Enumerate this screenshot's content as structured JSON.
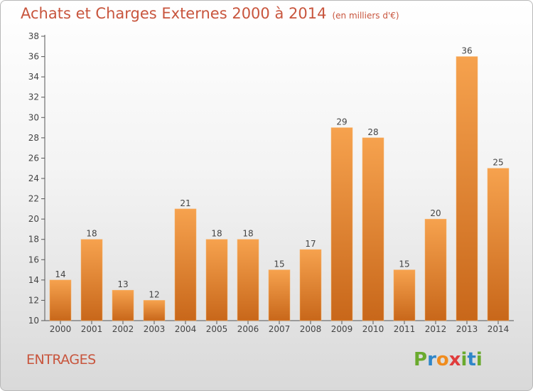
{
  "title": "Achats et Charges Externes 2000 à 2014",
  "unit_note": "(en milliers d'€)",
  "location": "ENTRAGES",
  "logo": [
    "P",
    "r",
    "o",
    "x",
    "i",
    "t",
    "i"
  ],
  "colors": {
    "title": "#c8553d",
    "bar_light": "#f6a24e",
    "bar_dark": "#c8671a"
  },
  "chart_data": {
    "type": "bar",
    "title": "Achats et Charges Externes 2000 à 2014",
    "xlabel": "",
    "ylabel": "",
    "categories": [
      "2000",
      "2001",
      "2002",
      "2003",
      "2004",
      "2005",
      "2006",
      "2007",
      "2008",
      "2009",
      "2010",
      "2011",
      "2012",
      "2013",
      "2014"
    ],
    "values": [
      14,
      18,
      13,
      12,
      21,
      18,
      18,
      15,
      17,
      29,
      28,
      15,
      20,
      36,
      25
    ],
    "ylim": [
      10,
      38
    ],
    "yticks": [
      10,
      12,
      14,
      16,
      18,
      20,
      22,
      24,
      26,
      28,
      30,
      32,
      34,
      36,
      38
    ],
    "grid": false,
    "legend": "none"
  }
}
